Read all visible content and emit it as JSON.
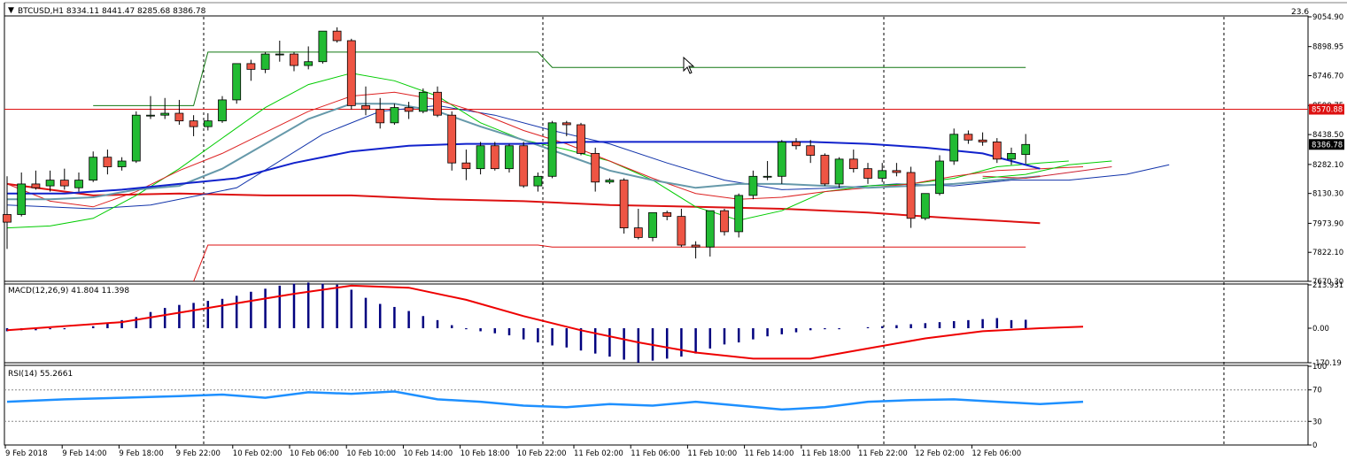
{
  "symbol_header": "BTCUSD,H1  8334.11 8441.47 8285.68 8386.78",
  "top_right_value": "23.6",
  "price_panel": {
    "ylim": [
      7670.3,
      9054.9
    ],
    "ticks": [
      "9054.90",
      "8898.95",
      "8746.70",
      "8590.75",
      "8438.50",
      "8282.10",
      "8130.30",
      "7973.90",
      "7822.10",
      "7670.30"
    ],
    "current_price_label": "8386.78",
    "red_line_label": "8570.88"
  },
  "macd_panel": {
    "label": "MACD(12,26,9) 41.804 11.398",
    "ylim": [
      -170.19,
      213.931
    ],
    "ticks": [
      "213.931",
      "0.00",
      "-170.19"
    ]
  },
  "rsi_panel": {
    "label": "RSI(14) 55.2661",
    "ylim": [
      0,
      100
    ],
    "ticks": [
      "100",
      "70",
      "30",
      "0"
    ],
    "levels": [
      70,
      30
    ]
  },
  "time_labels": [
    "9 Feb 2018",
    "9 Feb 14:00",
    "9 Feb 18:00",
    "9 Feb 22:00",
    "10 Feb 02:00",
    "10 Feb 06:00",
    "10 Feb 10:00",
    "10 Feb 14:00",
    "10 Feb 18:00",
    "10 Feb 22:00",
    "11 Feb 02:00",
    "11 Feb 06:00",
    "11 Feb 10:00",
    "11 Feb 14:00",
    "11 Feb 18:00",
    "11 Feb 22:00",
    "12 Feb 02:00",
    "12 Feb 06:00"
  ],
  "chart_data": {
    "type": "candlestick",
    "title": "BTCUSD,H1",
    "colors": {
      "bull": "#22bb33",
      "bear": "#ee5544",
      "sma_fast": "#00cc00",
      "ema_red": "#dd2222",
      "ema_grey": "#6699aa",
      "ma_blue": "#1122cc",
      "ma_slow_blue": "#1133aa",
      "ma_slow_red": "#dd1111",
      "macd_hist": "#00007f",
      "macd_signal": "#ee0000",
      "rsi": "#1e90ff"
    },
    "candles": [
      {
        "o": 8020,
        "h": 8220,
        "l": 7840,
        "c": 7980
      },
      {
        "o": 8020,
        "h": 8240,
        "l": 8010,
        "c": 8180
      },
      {
        "o": 8180,
        "h": 8250,
        "l": 8150,
        "c": 8160
      },
      {
        "o": 8170,
        "h": 8250,
        "l": 8140,
        "c": 8200
      },
      {
        "o": 8200,
        "h": 8260,
        "l": 8150,
        "c": 8170
      },
      {
        "o": 8160,
        "h": 8240,
        "l": 8140,
        "c": 8200
      },
      {
        "o": 8200,
        "h": 8350,
        "l": 8190,
        "c": 8320
      },
      {
        "o": 8320,
        "h": 8360,
        "l": 8230,
        "c": 8270
      },
      {
        "o": 8270,
        "h": 8320,
        "l": 8250,
        "c": 8300
      },
      {
        "o": 8300,
        "h": 8560,
        "l": 8290,
        "c": 8540
      },
      {
        "o": 8540,
        "h": 8640,
        "l": 8520,
        "c": 8540
      },
      {
        "o": 8540,
        "h": 8630,
        "l": 8520,
        "c": 8550
      },
      {
        "o": 8550,
        "h": 8620,
        "l": 8490,
        "c": 8510
      },
      {
        "o": 8510,
        "h": 8540,
        "l": 8430,
        "c": 8480
      },
      {
        "o": 8480,
        "h": 8550,
        "l": 8460,
        "c": 8510
      },
      {
        "o": 8510,
        "h": 8640,
        "l": 8500,
        "c": 8620
      },
      {
        "o": 8620,
        "h": 8810,
        "l": 8600,
        "c": 8810
      },
      {
        "o": 8810,
        "h": 8830,
        "l": 8720,
        "c": 8780
      },
      {
        "o": 8780,
        "h": 8870,
        "l": 8760,
        "c": 8860
      },
      {
        "o": 8860,
        "h": 8930,
        "l": 8820,
        "c": 8860
      },
      {
        "o": 8860,
        "h": 8870,
        "l": 8770,
        "c": 8800
      },
      {
        "o": 8800,
        "h": 8900,
        "l": 8780,
        "c": 8820
      },
      {
        "o": 8820,
        "h": 8980,
        "l": 8810,
        "c": 8980
      },
      {
        "o": 8980,
        "h": 9000,
        "l": 8920,
        "c": 8930
      },
      {
        "o": 8930,
        "h": 8940,
        "l": 8570,
        "c": 8590
      },
      {
        "o": 8590,
        "h": 8690,
        "l": 8540,
        "c": 8570
      },
      {
        "o": 8570,
        "h": 8630,
        "l": 8470,
        "c": 8500
      },
      {
        "o": 8500,
        "h": 8600,
        "l": 8490,
        "c": 8580
      },
      {
        "o": 8580,
        "h": 8610,
        "l": 8520,
        "c": 8560
      },
      {
        "o": 8560,
        "h": 8680,
        "l": 8550,
        "c": 8660
      },
      {
        "o": 8660,
        "h": 8690,
        "l": 8530,
        "c": 8540
      },
      {
        "o": 8540,
        "h": 8560,
        "l": 8250,
        "c": 8290
      },
      {
        "o": 8290,
        "h": 8360,
        "l": 8200,
        "c": 8260
      },
      {
        "o": 8260,
        "h": 8400,
        "l": 8230,
        "c": 8380
      },
      {
        "o": 8380,
        "h": 8400,
        "l": 8250,
        "c": 8260
      },
      {
        "o": 8260,
        "h": 8390,
        "l": 8240,
        "c": 8380
      },
      {
        "o": 8380,
        "h": 8400,
        "l": 8160,
        "c": 8170
      },
      {
        "o": 8170,
        "h": 8240,
        "l": 8140,
        "c": 8220
      },
      {
        "o": 8220,
        "h": 8510,
        "l": 8210,
        "c": 8500
      },
      {
        "o": 8500,
        "h": 8510,
        "l": 8430,
        "c": 8490
      },
      {
        "o": 8490,
        "h": 8500,
        "l": 8330,
        "c": 8340
      },
      {
        "o": 8340,
        "h": 8370,
        "l": 8140,
        "c": 8190
      },
      {
        "o": 8190,
        "h": 8210,
        "l": 8180,
        "c": 8200
      },
      {
        "o": 8200,
        "h": 8210,
        "l": 7920,
        "c": 7950
      },
      {
        "o": 7950,
        "h": 8050,
        "l": 7890,
        "c": 7900
      },
      {
        "o": 7900,
        "h": 8030,
        "l": 7880,
        "c": 8030
      },
      {
        "o": 8030,
        "h": 8040,
        "l": 7990,
        "c": 8010
      },
      {
        "o": 8010,
        "h": 8050,
        "l": 7850,
        "c": 7860
      },
      {
        "o": 7860,
        "h": 7880,
        "l": 7790,
        "c": 7850
      },
      {
        "o": 7850,
        "h": 8040,
        "l": 7800,
        "c": 8040
      },
      {
        "o": 8040,
        "h": 8050,
        "l": 7910,
        "c": 7930
      },
      {
        "o": 7930,
        "h": 8130,
        "l": 7900,
        "c": 8120
      },
      {
        "o": 8120,
        "h": 8250,
        "l": 8100,
        "c": 8220
      },
      {
        "o": 8220,
        "h": 8300,
        "l": 8200,
        "c": 8220
      },
      {
        "o": 8220,
        "h": 8410,
        "l": 8180,
        "c": 8400
      },
      {
        "o": 8400,
        "h": 8420,
        "l": 8360,
        "c": 8380
      },
      {
        "o": 8380,
        "h": 8410,
        "l": 8290,
        "c": 8330
      },
      {
        "o": 8330,
        "h": 8340,
        "l": 8170,
        "c": 8180
      },
      {
        "o": 8180,
        "h": 8320,
        "l": 8160,
        "c": 8310
      },
      {
        "o": 8310,
        "h": 8360,
        "l": 8240,
        "c": 8260
      },
      {
        "o": 8260,
        "h": 8290,
        "l": 8180,
        "c": 8210
      },
      {
        "o": 8210,
        "h": 8290,
        "l": 8190,
        "c": 8250
      },
      {
        "o": 8250,
        "h": 8290,
        "l": 8220,
        "c": 8240
      },
      {
        "o": 8240,
        "h": 8270,
        "l": 7950,
        "c": 8000
      },
      {
        "o": 8000,
        "h": 8130,
        "l": 7990,
        "c": 8130
      },
      {
        "o": 8130,
        "h": 8330,
        "l": 8120,
        "c": 8300
      },
      {
        "o": 8300,
        "h": 8470,
        "l": 8280,
        "c": 8440
      },
      {
        "o": 8440,
        "h": 8460,
        "l": 8390,
        "c": 8410
      },
      {
        "o": 8410,
        "h": 8450,
        "l": 8380,
        "c": 8400
      },
      {
        "o": 8400,
        "h": 8420,
        "l": 8290,
        "c": 8310
      },
      {
        "o": 8310,
        "h": 8370,
        "l": 8280,
        "c": 8340
      },
      {
        "o": 8334.11,
        "h": 8441.47,
        "l": 8285.68,
        "c": 8386.78
      }
    ],
    "sma_fast": [
      [
        0,
        7950
      ],
      [
        3,
        7960
      ],
      [
        6,
        8000
      ],
      [
        9,
        8120
      ],
      [
        12,
        8260
      ],
      [
        15,
        8420
      ],
      [
        18,
        8580
      ],
      [
        21,
        8700
      ],
      [
        24,
        8760
      ],
      [
        27,
        8720
      ],
      [
        30,
        8640
      ],
      [
        33,
        8500
      ],
      [
        36,
        8410
      ],
      [
        39,
        8360
      ],
      [
        42,
        8300
      ],
      [
        45,
        8200
      ],
      [
        48,
        8060
      ],
      [
        51,
        7990
      ],
      [
        54,
        8040
      ],
      [
        57,
        8140
      ],
      [
        60,
        8170
      ],
      [
        63,
        8180
      ],
      [
        66,
        8210
      ],
      [
        69,
        8270
      ],
      [
        72,
        8290
      ],
      [
        74,
        8300
      ]
    ],
    "ema_red": [
      [
        0,
        8180
      ],
      [
        3,
        8090
      ],
      [
        6,
        8060
      ],
      [
        9,
        8140
      ],
      [
        12,
        8250
      ],
      [
        15,
        8340
      ],
      [
        18,
        8450
      ],
      [
        21,
        8560
      ],
      [
        24,
        8640
      ],
      [
        27,
        8660
      ],
      [
        30,
        8620
      ],
      [
        33,
        8550
      ],
      [
        36,
        8460
      ],
      [
        39,
        8390
      ],
      [
        42,
        8300
      ],
      [
        45,
        8210
      ],
      [
        48,
        8130
      ],
      [
        51,
        8100
      ],
      [
        54,
        8110
      ],
      [
        57,
        8140
      ],
      [
        60,
        8160
      ],
      [
        63,
        8180
      ],
      [
        66,
        8220
      ],
      [
        69,
        8250
      ],
      [
        72,
        8260
      ],
      [
        75,
        8270
      ]
    ],
    "ema_grey": [
      [
        0,
        8100
      ],
      [
        3,
        8100
      ],
      [
        6,
        8110
      ],
      [
        9,
        8150
      ],
      [
        12,
        8170
      ],
      [
        15,
        8260
      ],
      [
        18,
        8390
      ],
      [
        21,
        8520
      ],
      [
        24,
        8600
      ],
      [
        27,
        8600
      ],
      [
        30,
        8560
      ],
      [
        33,
        8480
      ],
      [
        36,
        8410
      ],
      [
        39,
        8330
      ],
      [
        42,
        8250
      ],
      [
        45,
        8200
      ],
      [
        48,
        8160
      ],
      [
        51,
        8180
      ],
      [
        54,
        8180
      ],
      [
        57,
        8170
      ],
      [
        60,
        8160
      ],
      [
        63,
        8170
      ],
      [
        66,
        8180
      ],
      [
        69,
        8200
      ],
      [
        72,
        8220
      ]
    ],
    "ma_blue": [
      [
        0,
        8130
      ],
      [
        4,
        8130
      ],
      [
        8,
        8150
      ],
      [
        12,
        8180
      ],
      [
        16,
        8210
      ],
      [
        20,
        8290
      ],
      [
        24,
        8350
      ],
      [
        28,
        8380
      ],
      [
        32,
        8390
      ],
      [
        36,
        8390
      ],
      [
        40,
        8400
      ],
      [
        44,
        8400
      ],
      [
        48,
        8400
      ],
      [
        52,
        8400
      ],
      [
        56,
        8400
      ],
      [
        60,
        8390
      ],
      [
        64,
        8370
      ],
      [
        68,
        8340
      ],
      [
        72,
        8260
      ]
    ],
    "ma_slow_red": [
      [
        0,
        8180
      ],
      [
        6,
        8120
      ],
      [
        12,
        8130
      ],
      [
        18,
        8120
      ],
      [
        24,
        8120
      ],
      [
        30,
        8100
      ],
      [
        36,
        8090
      ],
      [
        42,
        8070
      ],
      [
        48,
        8060
      ],
      [
        54,
        8050
      ],
      [
        60,
        8030
      ],
      [
        66,
        8000
      ],
      [
        72,
        7975
      ]
    ],
    "ma_slow_blue_ext": [
      [
        0,
        8070
      ],
      [
        6,
        8050
      ],
      [
        10,
        8070
      ],
      [
        16,
        8160
      ],
      [
        22,
        8440
      ],
      [
        26,
        8560
      ],
      [
        30,
        8590
      ],
      [
        34,
        8540
      ],
      [
        38,
        8460
      ],
      [
        42,
        8390
      ],
      [
        46,
        8290
      ],
      [
        50,
        8200
      ],
      [
        54,
        8150
      ],
      [
        58,
        8160
      ],
      [
        62,
        8180
      ],
      [
        66,
        8170
      ],
      [
        70,
        8200
      ],
      [
        74,
        8200
      ],
      [
        78,
        8230
      ],
      [
        81,
        8280
      ]
    ],
    "env_ext": [
      [
        68,
        8220
      ],
      [
        71,
        8210
      ],
      [
        74,
        8240
      ],
      [
        77,
        8270
      ]
    ],
    "green_env_ext": [
      [
        68,
        8210
      ],
      [
        71,
        8230
      ],
      [
        74,
        8280
      ],
      [
        77,
        8300
      ]
    ],
    "highlow_green": [
      [
        6,
        8590
      ],
      [
        13,
        8590
      ],
      [
        14,
        8870
      ],
      [
        37,
        8870
      ],
      [
        38,
        8790
      ],
      [
        71,
        8790
      ]
    ],
    "highlow_red": [
      [
        13,
        7670
      ],
      [
        14,
        7860
      ],
      [
        37,
        7860
      ],
      [
        38,
        7850
      ],
      [
        71,
        7850
      ]
    ],
    "macd_hist": [
      -15,
      -10,
      -10,
      -5,
      -5,
      0,
      10,
      25,
      40,
      55,
      80,
      100,
      115,
      125,
      135,
      145,
      160,
      180,
      195,
      210,
      220,
      225,
      220,
      215,
      190,
      150,
      120,
      105,
      85,
      60,
      40,
      15,
      -5,
      -15,
      -25,
      -35,
      -55,
      -70,
      -85,
      -95,
      -110,
      -125,
      -140,
      -155,
      -170,
      -160,
      -150,
      -140,
      -125,
      -100,
      -80,
      -70,
      -55,
      -40,
      -30,
      -20,
      -10,
      -5,
      -5,
      0,
      5,
      10,
      15,
      20,
      25,
      30,
      35,
      40,
      45,
      50,
      40,
      41.8
    ],
    "macd_signal": [
      [
        0,
        -10
      ],
      [
        8,
        30
      ],
      [
        14,
        100
      ],
      [
        20,
        170
      ],
      [
        24,
        210
      ],
      [
        28,
        200
      ],
      [
        32,
        140
      ],
      [
        36,
        60
      ],
      [
        40,
        -10
      ],
      [
        44,
        -70
      ],
      [
        48,
        -120
      ],
      [
        52,
        -150
      ],
      [
        56,
        -150
      ],
      [
        60,
        -100
      ],
      [
        64,
        -50
      ],
      [
        68,
        -15
      ],
      [
        72,
        0
      ],
      [
        75,
        8
      ]
    ],
    "rsi": [
      [
        0,
        55
      ],
      [
        4,
        58
      ],
      [
        8,
        60
      ],
      [
        12,
        62
      ],
      [
        15,
        64
      ],
      [
        18,
        60
      ],
      [
        21,
        67
      ],
      [
        24,
        65
      ],
      [
        27,
        68
      ],
      [
        30,
        58
      ],
      [
        33,
        55
      ],
      [
        36,
        50
      ],
      [
        39,
        48
      ],
      [
        42,
        52
      ],
      [
        45,
        50
      ],
      [
        48,
        55
      ],
      [
        51,
        50
      ],
      [
        54,
        45
      ],
      [
        57,
        48
      ],
      [
        60,
        55
      ],
      [
        63,
        57
      ],
      [
        66,
        58
      ],
      [
        69,
        55
      ],
      [
        72,
        52
      ],
      [
        75,
        55
      ]
    ]
  }
}
